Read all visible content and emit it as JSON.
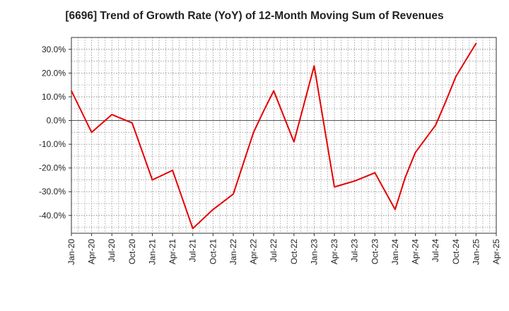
{
  "chart_data": {
    "type": "line",
    "title": "[6696]  Trend of Growth Rate (YoY) of 12-Month Moving Sum of Revenues",
    "xlabel": "",
    "ylabel": "",
    "x_ticks": [
      "Jan-20",
      "Apr-20",
      "Jul-20",
      "Oct-20",
      "Jan-21",
      "Apr-21",
      "Jul-21",
      "Oct-21",
      "Jan-22",
      "Apr-22",
      "Jul-22",
      "Oct-22",
      "Jan-23",
      "Apr-23",
      "Jul-23",
      "Oct-23",
      "Jan-24",
      "Apr-24",
      "Jul-24",
      "Oct-24",
      "Jan-25",
      "Apr-25"
    ],
    "y_ticks": [
      "30.0%",
      "20.0%",
      "10.0%",
      "0.0%",
      "-10.0%",
      "-20.0%",
      "-30.0%",
      "-40.0%"
    ],
    "y_tick_values": [
      30,
      20,
      10,
      0,
      -10,
      -20,
      -30,
      -40
    ],
    "ylim": [
      -47.5,
      35
    ],
    "grid": true,
    "line_color": "#e60000",
    "series": [
      {
        "name": "",
        "x": [
          "Jan-20",
          "Apr-20",
          "Jul-20",
          "Oct-20",
          "Jan-21",
          "Apr-21",
          "Jul-21",
          "Oct-21",
          "Jan-22",
          "Apr-22",
          "Jul-22",
          "Oct-22",
          "Jan-23",
          "Apr-23",
          "Jul-23",
          "Oct-23",
          "Jan-24",
          "Apr-24",
          "Jul-24",
          "Oct-24",
          "Jan-25"
        ],
        "values": [
          12.5,
          -5.0,
          2.5,
          -1.0,
          -25.0,
          -21.0,
          -45.5,
          -37.5,
          -31.0,
          -5.0,
          12.5,
          -9.0,
          23.0,
          -28.0,
          -25.5,
          -22.0,
          -37.5,
          -13.5,
          -2.0,
          18.5,
          32.5
        ],
        "extra_points": [
          {
            "x_index": 9.5,
            "value": 4.0
          },
          {
            "x_index": 16.5,
            "value": -24.0
          },
          {
            "x_index": 18.5,
            "value": 8.0
          }
        ]
      }
    ]
  }
}
